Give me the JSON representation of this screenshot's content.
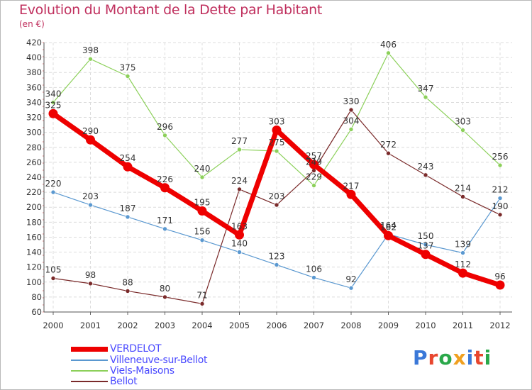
{
  "title": "Evolution du Montant de la Dette par Habitant",
  "unit_label": "(en €)",
  "logo": {
    "text": "Proxiti",
    "colors": [
      "#3a78d8",
      "#e8462e",
      "#2aa84a",
      "#f0a020",
      "#3a78d8",
      "#e8462e",
      "#2aa84a"
    ]
  },
  "chart_data": {
    "type": "line",
    "title": "Evolution du Montant de la Dette par Habitant",
    "ylabel": "(en €)",
    "xlabel": "",
    "x": [
      "2000",
      "2001",
      "2002",
      "2003",
      "2004",
      "2005",
      "2006",
      "2007",
      "2008",
      "2009",
      "2010",
      "2011",
      "2012"
    ],
    "ylim": [
      60,
      420
    ],
    "yticks": [
      60,
      80,
      100,
      120,
      140,
      160,
      180,
      200,
      220,
      240,
      260,
      280,
      300,
      320,
      340,
      360,
      380,
      400,
      420
    ],
    "grid": true,
    "legend_position": "bottom-left",
    "series": [
      {
        "name": "Viels-Maisons",
        "color": "#8cd05a",
        "values": [
          340,
          398,
          375,
          296,
          240,
          277,
          275,
          229,
          304,
          406,
          347,
          303,
          256
        ],
        "width": 1.2,
        "dot": 3
      },
      {
        "name": "Villeneuve-sur-Bellot",
        "color": "#5a98d0",
        "values": [
          220,
          203,
          187,
          171,
          156,
          140,
          123,
          106,
          92,
          164,
          150,
          139,
          212
        ],
        "width": 1.2,
        "dot": 3
      },
      {
        "name": "Bellot",
        "color": "#7a2a2a",
        "values": [
          105,
          98,
          88,
          80,
          71,
          224,
          203,
          249,
          330,
          272,
          243,
          214,
          190
        ],
        "width": 1.2,
        "dot": 3
      },
      {
        "name": "VERDELOT",
        "color": "#ee0000",
        "values": [
          325,
          290,
          254,
          226,
          195,
          163,
          303,
          257,
          217,
          162,
          137,
          112,
          96
        ],
        "width": 7,
        "dot": 6.5
      }
    ],
    "legend": [
      "VERDELOT",
      "Villeneuve-sur-Bellot",
      "Viels-Maisons",
      "Bellot"
    ]
  }
}
